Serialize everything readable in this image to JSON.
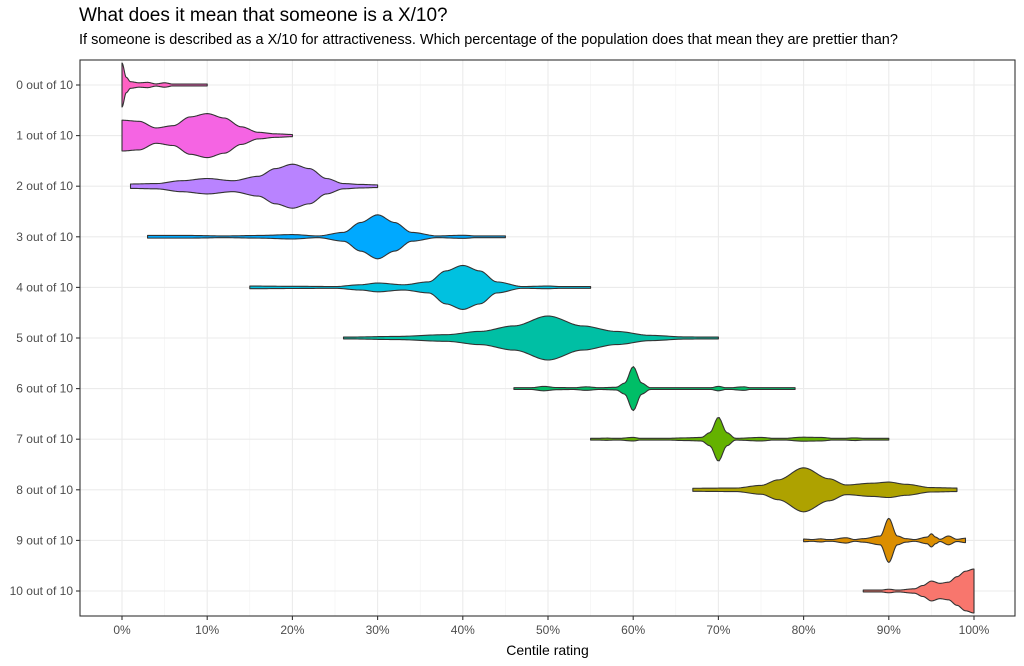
{
  "chart_data": {
    "type": "violin",
    "title": "What does it mean that someone is a X/10?",
    "subtitle": "If someone is described as a X/10 for attractiveness. Which percentage of the population does that mean they are prettier than?",
    "xlabel": "Centile rating",
    "ylabel": "",
    "xlim": [
      0,
      100
    ],
    "x_ticks": [
      0,
      10,
      20,
      30,
      40,
      50,
      60,
      70,
      80,
      90,
      100
    ],
    "x_tick_labels": [
      "0%",
      "10%",
      "20%",
      "30%",
      "40%",
      "50%",
      "60%",
      "70%",
      "80%",
      "90%",
      "100%"
    ],
    "grid": true,
    "legend": "none",
    "categories": [
      "0 out of 10",
      "1 out of 10",
      "2 out of 10",
      "3 out of 10",
      "4 out of 10",
      "5 out of 10",
      "6 out of 10",
      "7 out of 10",
      "8 out of 10",
      "9 out of 10",
      "10 out of 10"
    ],
    "series": [
      {
        "name": "0 out of 10",
        "color": "#FF61C3",
        "min": 0,
        "max": 10,
        "density": [
          [
            0,
            1
          ],
          [
            0.5,
            0.35
          ],
          [
            1,
            0.15
          ],
          [
            2,
            0.1
          ],
          [
            3,
            0.12
          ],
          [
            4,
            0.05
          ],
          [
            5,
            0.1
          ],
          [
            6,
            0.04
          ],
          [
            8,
            0.03
          ],
          [
            10,
            0.02
          ]
        ]
      },
      {
        "name": "1 out of 10",
        "color": "#F564E3",
        "min": 0,
        "max": 20,
        "density": [
          [
            0,
            0.7
          ],
          [
            2,
            0.65
          ],
          [
            4,
            0.35
          ],
          [
            6,
            0.45
          ],
          [
            8,
            0.85
          ],
          [
            10,
            1
          ],
          [
            12,
            0.8
          ],
          [
            14,
            0.4
          ],
          [
            16,
            0.15
          ],
          [
            18,
            0.08
          ],
          [
            20,
            0.05
          ]
        ]
      },
      {
        "name": "2 out of 10",
        "color": "#B983FF",
        "min": 1,
        "max": 30,
        "density": [
          [
            1,
            0.1
          ],
          [
            4,
            0.12
          ],
          [
            7,
            0.25
          ],
          [
            10,
            0.35
          ],
          [
            13,
            0.25
          ],
          [
            16,
            0.45
          ],
          [
            18,
            0.8
          ],
          [
            20,
            1
          ],
          [
            22,
            0.8
          ],
          [
            24,
            0.35
          ],
          [
            26,
            0.12
          ],
          [
            28,
            0.08
          ],
          [
            30,
            0.06
          ]
        ]
      },
      {
        "name": "3 out of 10",
        "color": "#00A9FF",
        "min": 3,
        "max": 45,
        "density": [
          [
            3,
            0.06
          ],
          [
            8,
            0.06
          ],
          [
            12,
            0.04
          ],
          [
            16,
            0.06
          ],
          [
            20,
            0.1
          ],
          [
            23,
            0.04
          ],
          [
            26,
            0.2
          ],
          [
            28,
            0.65
          ],
          [
            30,
            1
          ],
          [
            32,
            0.65
          ],
          [
            34,
            0.2
          ],
          [
            37,
            0.04
          ],
          [
            40,
            0.07
          ],
          [
            42,
            0.03
          ],
          [
            45,
            0.03
          ]
        ]
      },
      {
        "name": "4 out of 10",
        "color": "#00C1E0",
        "min": 15,
        "max": 55,
        "density": [
          [
            15,
            0.06
          ],
          [
            20,
            0.05
          ],
          [
            25,
            0.04
          ],
          [
            28,
            0.12
          ],
          [
            30,
            0.2
          ],
          [
            33,
            0.12
          ],
          [
            36,
            0.25
          ],
          [
            38,
            0.75
          ],
          [
            40,
            1
          ],
          [
            42,
            0.75
          ],
          [
            44,
            0.25
          ],
          [
            47,
            0.04
          ],
          [
            50,
            0.06
          ],
          [
            52,
            0.03
          ],
          [
            55,
            0.03
          ]
        ]
      },
      {
        "name": "5 out of 10",
        "color": "#00BFA4",
        "min": 26,
        "max": 70,
        "density": [
          [
            26,
            0.04
          ],
          [
            32,
            0.07
          ],
          [
            38,
            0.15
          ],
          [
            42,
            0.3
          ],
          [
            46,
            0.55
          ],
          [
            50,
            1
          ],
          [
            54,
            0.55
          ],
          [
            58,
            0.3
          ],
          [
            62,
            0.12
          ],
          [
            66,
            0.05
          ],
          [
            70,
            0.03
          ]
        ]
      },
      {
        "name": "6 out of 10",
        "color": "#00BE67",
        "min": 46,
        "max": 79,
        "density": [
          [
            46,
            0.03
          ],
          [
            48,
            0.04
          ],
          [
            49.5,
            0.1
          ],
          [
            51,
            0.05
          ],
          [
            53,
            0.04
          ],
          [
            54.5,
            0.08
          ],
          [
            56,
            0.04
          ],
          [
            58,
            0.06
          ],
          [
            59,
            0.25
          ],
          [
            60,
            1
          ],
          [
            61,
            0.25
          ],
          [
            62,
            0.04
          ],
          [
            65,
            0.02
          ],
          [
            69,
            0.03
          ],
          [
            70,
            0.1
          ],
          [
            71,
            0.03
          ],
          [
            73,
            0.08
          ],
          [
            74,
            0.02
          ],
          [
            79,
            0.01
          ]
        ]
      },
      {
        "name": "7 out of 10",
        "color": "#64B200",
        "min": 55,
        "max": 90,
        "density": [
          [
            55,
            0.03
          ],
          [
            57,
            0.05
          ],
          [
            58,
            0.03
          ],
          [
            60,
            0.08
          ],
          [
            61,
            0.03
          ],
          [
            64,
            0.04
          ],
          [
            66,
            0.06
          ],
          [
            68,
            0.08
          ],
          [
            69,
            0.3
          ],
          [
            70,
            1
          ],
          [
            71,
            0.3
          ],
          [
            72,
            0.04
          ],
          [
            75,
            0.08
          ],
          [
            77,
            0.02
          ],
          [
            80,
            0.09
          ],
          [
            82,
            0.08
          ],
          [
            84,
            0.02
          ],
          [
            86,
            0.06
          ],
          [
            88,
            0.02
          ],
          [
            90,
            0.02
          ]
        ]
      },
      {
        "name": "8 out of 10",
        "color": "#AEA200",
        "min": 67,
        "max": 98,
        "density": [
          [
            67,
            0.07
          ],
          [
            72,
            0.08
          ],
          [
            75,
            0.2
          ],
          [
            77,
            0.45
          ],
          [
            80,
            1
          ],
          [
            83,
            0.5
          ],
          [
            85,
            0.22
          ],
          [
            88,
            0.3
          ],
          [
            90,
            0.35
          ],
          [
            92,
            0.25
          ],
          [
            95,
            0.1
          ],
          [
            98,
            0.08
          ]
        ]
      },
      {
        "name": "9 out of 10",
        "color": "#DB8E00",
        "min": 80,
        "max": 99,
        "density": [
          [
            80,
            0.06
          ],
          [
            81,
            0.04
          ],
          [
            82,
            0.07
          ],
          [
            83,
            0.03
          ],
          [
            85,
            0.12
          ],
          [
            86,
            0.04
          ],
          [
            87,
            0.08
          ],
          [
            89,
            0.2
          ],
          [
            90,
            1
          ],
          [
            91,
            0.2
          ],
          [
            92,
            0.08
          ],
          [
            93,
            0.04
          ],
          [
            94.5,
            0.15
          ],
          [
            95,
            0.3
          ],
          [
            95.5,
            0.15
          ],
          [
            96,
            0.05
          ],
          [
            97,
            0.2
          ],
          [
            98,
            0.05
          ],
          [
            99,
            0.1
          ]
        ]
      },
      {
        "name": "10 out of 10",
        "color": "#F8766D",
        "min": 87,
        "max": 100,
        "density": [
          [
            87,
            0.04
          ],
          [
            89,
            0.04
          ],
          [
            90,
            0.08
          ],
          [
            91,
            0.04
          ],
          [
            93,
            0.1
          ],
          [
            94,
            0.25
          ],
          [
            95,
            0.45
          ],
          [
            96,
            0.35
          ],
          [
            97,
            0.4
          ],
          [
            98,
            0.65
          ],
          [
            99,
            0.9
          ],
          [
            100,
            1
          ]
        ]
      }
    ]
  }
}
